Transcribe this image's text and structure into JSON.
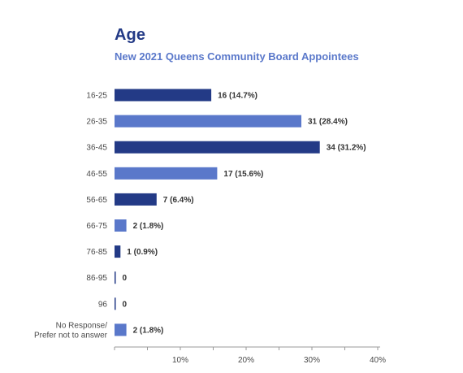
{
  "chart_data": {
    "type": "bar",
    "orientation": "horizontal",
    "title": "Age",
    "subtitle": "New 2021 Queens Community Board Appointees",
    "xlabel": "",
    "ylabel": "",
    "xlim": [
      0,
      40
    ],
    "x_ticks": [
      "10%",
      "20%",
      "30%",
      "40%"
    ],
    "grid": false,
    "categories": [
      [
        "16-25"
      ],
      [
        "26-35"
      ],
      [
        "36-45"
      ],
      [
        "46-55"
      ],
      [
        "56-65"
      ],
      [
        "66-75"
      ],
      [
        "76-85"
      ],
      [
        "86-95"
      ],
      [
        "96"
      ],
      [
        "No Response/",
        "Prefer not to answer"
      ]
    ],
    "counts": [
      16,
      31,
      34,
      17,
      7,
      2,
      1,
      0,
      0,
      2
    ],
    "values": [
      14.7,
      28.4,
      31.2,
      15.6,
      6.4,
      1.8,
      0.9,
      0,
      0,
      1.8
    ],
    "data_labels": [
      "16 (14.7%)",
      "31 (28.4%)",
      "34 (31.2%)",
      "17 (15.6%)",
      "7 (6.4%)",
      "2 (1.8%)",
      "1 (0.9%)",
      "0",
      "0",
      "2 (1.8%)"
    ],
    "colors": [
      "#233a86",
      "#5a78ca",
      "#233a86",
      "#5a78ca",
      "#233a86",
      "#5a78ca",
      "#233a86",
      "#5a78ca",
      "#233a86",
      "#5a78ca"
    ]
  }
}
